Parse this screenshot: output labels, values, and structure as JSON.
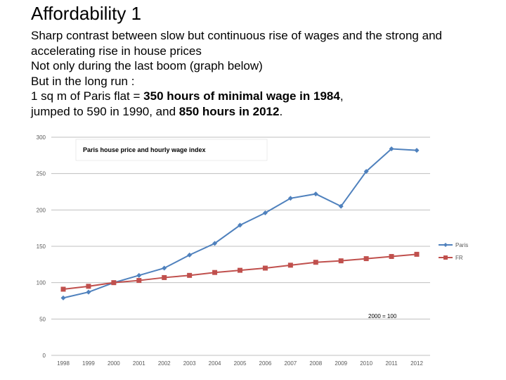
{
  "slide": {
    "title": "Affordability 1",
    "lines": [
      {
        "text": "Sharp contrast between slow but continuous rise of wages and the strong and"
      },
      {
        "text": "accelerating rise in house prices"
      },
      {
        "text": "Not only during the last boom (graph below)"
      },
      {
        "text": "But in the long run :"
      },
      {
        "pre": "1 sq m of Paris flat = ",
        "bold": "350 hours of minimal wage in 1984",
        "post": ","
      },
      {
        "pre": "jumped to 590 in 1990, and ",
        "bold": "850  hours in 2012",
        "post": "."
      }
    ]
  },
  "chart_data": {
    "type": "line",
    "title": "Paris house price and hourly wage index",
    "annotation": "2000 = 100",
    "x": [
      "1998",
      "1999",
      "2000",
      "2001",
      "2002",
      "2003",
      "2004",
      "2005",
      "2006",
      "2007",
      "2008",
      "2009",
      "2010",
      "2011",
      "2012"
    ],
    "ylim": [
      0,
      300
    ],
    "yticks": [
      0,
      50,
      100,
      150,
      200,
      250,
      300
    ],
    "grid": true,
    "legend_position": "right",
    "series": [
      {
        "name": "Paris",
        "color": "#4f81bd",
        "marker": "diamond",
        "values": [
          79,
          87,
          100,
          110,
          120,
          138,
          154,
          179,
          196,
          216,
          222,
          205,
          253,
          284,
          282
        ]
      },
      {
        "name": "FR",
        "color": "#c0504d",
        "marker": "square",
        "values": [
          91,
          95,
          100,
          103,
          107,
          110,
          114,
          117,
          120,
          124,
          128,
          130,
          133,
          136,
          139
        ]
      }
    ]
  }
}
